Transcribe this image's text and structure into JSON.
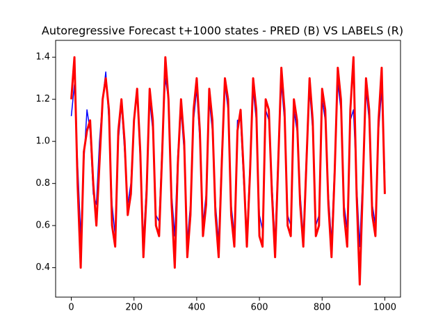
{
  "chart_data": {
    "type": "line",
    "title": "Autoregressive Forecast t+1000 states - PRED (B) VS LABELS (R)",
    "x": [
      0,
      10,
      20,
      30,
      40,
      50,
      60,
      70,
      80,
      90,
      100,
      110,
      120,
      130,
      140,
      150,
      160,
      170,
      180,
      190,
      200,
      210,
      220,
      230,
      240,
      250,
      260,
      270,
      280,
      290,
      300,
      310,
      320,
      330,
      340,
      350,
      360,
      370,
      380,
      390,
      400,
      410,
      420,
      430,
      440,
      450,
      460,
      470,
      480,
      490,
      500,
      510,
      520,
      530,
      540,
      550,
      560,
      570,
      580,
      590,
      600,
      610,
      620,
      630,
      640,
      650,
      660,
      670,
      680,
      690,
      700,
      710,
      720,
      730,
      740,
      750,
      760,
      770,
      780,
      790,
      800,
      810,
      820,
      830,
      840,
      850,
      860,
      870,
      880,
      890,
      900,
      910,
      920,
      930,
      940,
      950,
      960,
      970,
      980,
      990,
      1000
    ],
    "series": [
      {
        "color": "#0000ff",
        "width": 1.5,
        "values": [
          1.12,
          1.27,
          0.9,
          0.55,
          0.9,
          1.15,
          1.05,
          0.75,
          0.7,
          1.0,
          1.2,
          1.33,
          1.1,
          0.7,
          0.55,
          1.0,
          1.18,
          0.95,
          0.7,
          0.8,
          1.1,
          1.25,
          0.9,
          0.52,
          0.8,
          1.2,
          1.05,
          0.65,
          0.62,
          1.0,
          1.3,
          1.2,
          0.75,
          0.55,
          0.95,
          1.15,
          0.95,
          0.52,
          0.7,
          1.1,
          1.25,
          1.0,
          0.6,
          0.75,
          1.2,
          1.05,
          0.7,
          0.52,
          0.95,
          1.28,
          1.15,
          0.7,
          0.55,
          1.1,
          1.1,
          0.8,
          0.55,
          0.9,
          1.25,
          1.1,
          0.65,
          0.58,
          1.15,
          1.1,
          0.8,
          0.52,
          0.95,
          1.28,
          1.1,
          0.65,
          0.6,
          1.15,
          1.05,
          0.75,
          0.55,
          0.95,
          1.25,
          1.05,
          0.6,
          0.65,
          1.2,
          1.1,
          0.75,
          0.52,
          0.9,
          1.28,
          1.15,
          0.7,
          0.58,
          1.1,
          1.15,
          0.8,
          0.5,
          0.85,
          1.25,
          1.1,
          0.7,
          0.6,
          1.05,
          1.25,
          0.85
        ]
      },
      {
        "color": "#ff0000",
        "width": 3,
        "values": [
          1.2,
          1.4,
          0.8,
          0.4,
          0.95,
          1.05,
          1.1,
          0.8,
          0.6,
          0.9,
          1.2,
          1.3,
          1.15,
          0.6,
          0.5,
          1.05,
          1.2,
          1.0,
          0.65,
          0.75,
          1.1,
          1.25,
          0.95,
          0.45,
          0.75,
          1.25,
          1.1,
          0.6,
          0.55,
          0.95,
          1.4,
          1.2,
          0.7,
          0.4,
          0.9,
          1.2,
          1.0,
          0.45,
          0.65,
          1.15,
          1.3,
          1.05,
          0.55,
          0.7,
          1.25,
          1.1,
          0.65,
          0.45,
          0.9,
          1.3,
          1.2,
          0.65,
          0.5,
          1.05,
          1.15,
          0.85,
          0.5,
          0.85,
          1.3,
          1.15,
          0.55,
          0.5,
          1.2,
          1.15,
          0.75,
          0.45,
          0.9,
          1.35,
          1.15,
          0.6,
          0.55,
          1.2,
          1.1,
          0.7,
          0.5,
          0.9,
          1.3,
          1.1,
          0.55,
          0.6,
          1.25,
          1.15,
          0.7,
          0.45,
          0.85,
          1.35,
          1.2,
          0.65,
          0.5,
          1.15,
          1.4,
          0.75,
          0.32,
          0.8,
          1.3,
          1.15,
          0.65,
          0.55,
          1.1,
          1.35,
          0.75
        ]
      }
    ],
    "xlim": [
      -50,
      1050
    ],
    "xticks": [
      0,
      200,
      400,
      600,
      800,
      1000
    ],
    "ylim": [
      0.26,
      1.48
    ],
    "yticks": [
      0.4,
      0.6,
      0.8,
      1.0,
      1.2,
      1.4
    ]
  }
}
